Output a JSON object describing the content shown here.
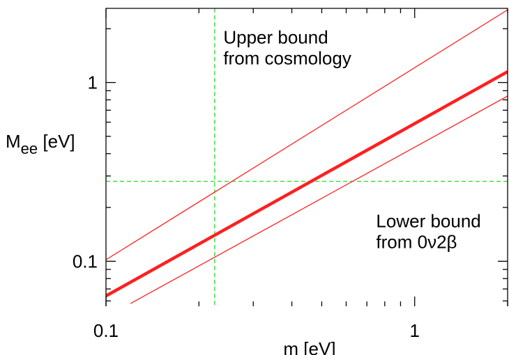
{
  "chart_data": {
    "type": "line",
    "xscale": "log",
    "yscale": "log",
    "xlim": [
      0.1,
      2.0
    ],
    "ylim": [
      0.056,
      2.6
    ],
    "xlabel": "m [eV]",
    "ylabel_main": "M",
    "ylabel_sub": "ee",
    "ylabel_unit": " [eV]",
    "x_ticks": [
      {
        "value": 0.1,
        "label": "0.1"
      },
      {
        "value": 1,
        "label": "1"
      }
    ],
    "y_ticks": [
      {
        "value": 0.1,
        "label": "0.1"
      },
      {
        "value": 1,
        "label": "1"
      }
    ],
    "grid": false,
    "series": [
      {
        "style": "thick",
        "color": "#ff2020",
        "x": [
          0.1,
          2.0
        ],
        "y": [
          0.064,
          1.15
        ]
      },
      {
        "style": "thin",
        "color": "#ff2020",
        "x": [
          0.1,
          2.0
        ],
        "y": [
          0.102,
          2.55
        ]
      },
      {
        "style": "thin",
        "color": "#ff2020",
        "x": [
          0.12,
          2.0
        ],
        "y": [
          0.058,
          0.84
        ]
      }
    ],
    "reference_lines": [
      {
        "orientation": "vertical",
        "value": 0.225,
        "color": "#22dd22",
        "dash": true
      },
      {
        "orientation": "horizontal",
        "value": 0.28,
        "color": "#22dd22",
        "dash": true
      }
    ],
    "annotations": [
      {
        "lines": [
          "Upper bound",
          "from cosmology"
        ],
        "x": 0.24,
        "y": 1.65
      },
      {
        "lines": [
          "Lower bound",
          "from 0ν2β"
        ],
        "x": 0.75,
        "y": 0.155
      }
    ]
  }
}
